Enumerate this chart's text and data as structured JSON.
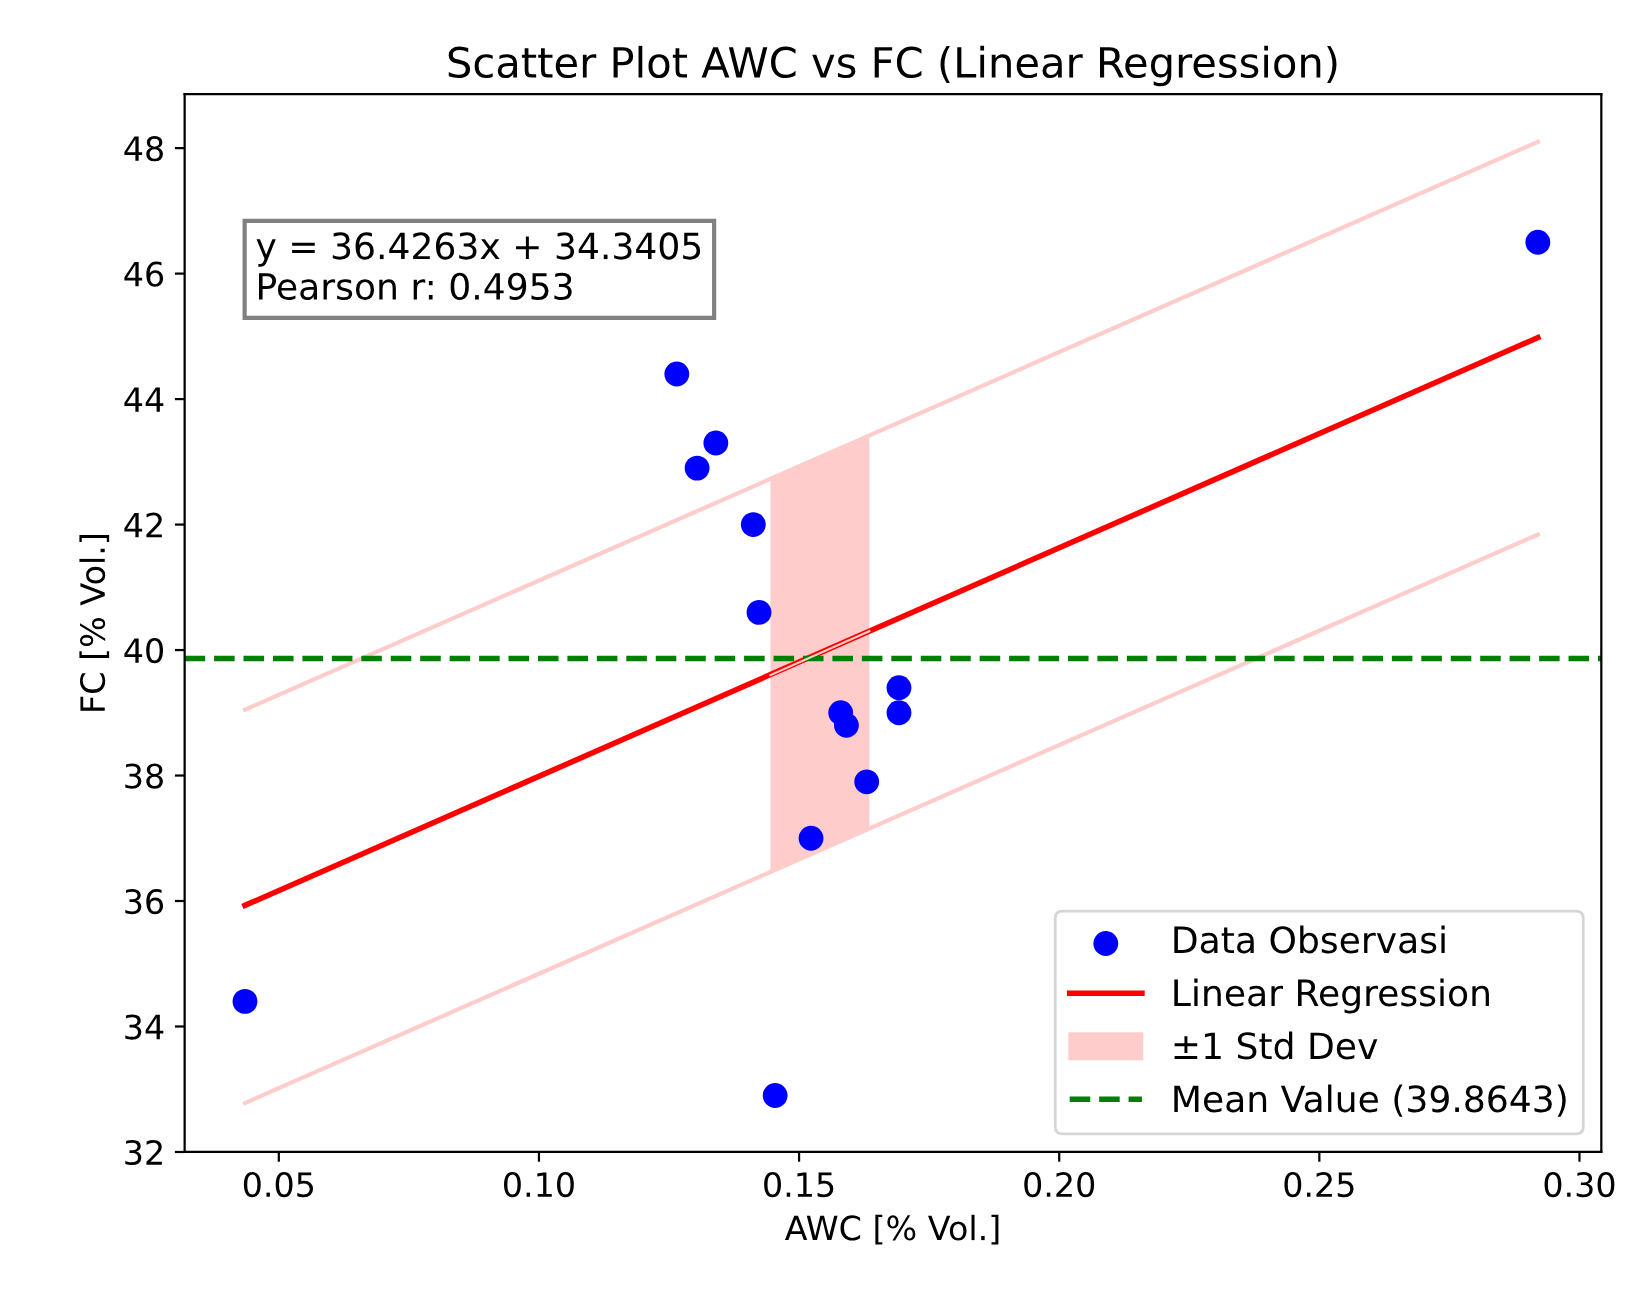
{
  "chart_data": {
    "type": "scatter",
    "title": "Scatter Plot AWC vs FC (Linear Regression)",
    "xlabel": "AWC [% Vol.]",
    "ylabel": "FC [% Vol.]",
    "annotations": [
      "y = 36.4263x + 34.3405\nPearson r: 0.4953"
    ],
    "series": [
      {
        "name": "Data Observasi",
        "color": "#0000ff",
        "marker": "circle",
        "x": [
          0.0435,
          0.292,
          0.1265,
          0.134,
          0.1304,
          0.1412,
          0.1423,
          0.1454,
          0.1523,
          0.158,
          0.1591,
          0.163,
          0.1692,
          0.1692
        ],
        "values": [
          34.4,
          46.5,
          44.4,
          43.3,
          42.9,
          42.0,
          40.6,
          32.9,
          37.0,
          39.0,
          38.8,
          37.9,
          39.4,
          39.0
        ]
      },
      {
        "name": "Linear Regression",
        "type": "line",
        "color": "#ff0000",
        "line_style": "solid",
        "x": [
          0.0435,
          0.292
        ],
        "values": [
          35.93,
          44.98
        ]
      },
      {
        "type": "line",
        "color": "#ffcccc",
        "line_style": "solid",
        "x": [
          0.0435,
          0.292
        ],
        "values": [
          39.05,
          48.1
        ]
      },
      {
        "type": "line",
        "color": "#ffcccc",
        "line_style": "solid",
        "x": [
          0.0435,
          0.292
        ],
        "values": [
          32.78,
          41.84
        ]
      },
      {
        "name": "±1 Std Dev",
        "type": "line",
        "line_style": "solid",
        "color": "#ffcccc",
        "x": [
          0.1445,
          0.1635
        ],
        "values": [
          39.6,
          40.3
        ],
        "lower": [
          36.46,
          37.16
        ],
        "upper": [
          42.75,
          43.44
        ]
      }
    ],
    "ref_lines": [
      {
        "axis": "y",
        "value": 39.8643,
        "label": "Mean Value (39.8643)",
        "color": "#008000",
        "line_style": "dashed"
      }
    ],
    "xlim": [
      0.0319,
      0.3042
    ],
    "ylim": [
      32.0,
      48.86
    ],
    "xticks": [
      {
        "value": 0.05,
        "label": "0.05"
      },
      {
        "value": 0.1,
        "label": "0.10"
      },
      {
        "value": 0.15,
        "label": "0.15"
      },
      {
        "value": 0.2,
        "label": "0.20"
      },
      {
        "value": 0.25,
        "label": "0.25"
      },
      {
        "value": 0.3,
        "label": "0.30"
      }
    ],
    "yticks": [
      32,
      34,
      36,
      38,
      40,
      42,
      44,
      46,
      48
    ],
    "legend": "bottom right",
    "grid": false
  }
}
